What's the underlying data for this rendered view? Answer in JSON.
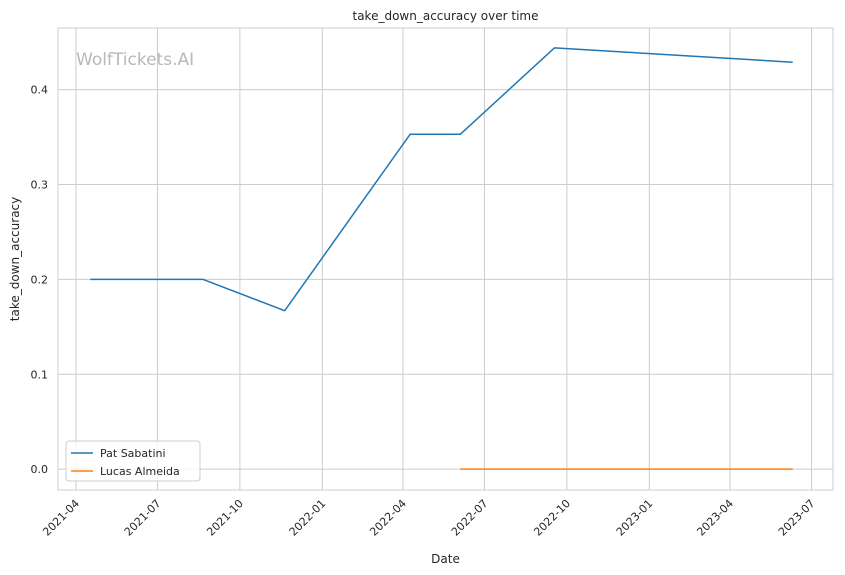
{
  "watermark": "WolfTickets.AI",
  "chart_data": {
    "type": "line",
    "title": "take_down_accuracy over time",
    "xlabel": "Date",
    "ylabel": "take_down_accuracy",
    "x_ticks": [
      "2021-04",
      "2021-07",
      "2021-10",
      "2022-01",
      "2022-04",
      "2022-07",
      "2022-10",
      "2023-01",
      "2023-04",
      "2023-07"
    ],
    "y_ticks": [
      "0.0",
      "0.1",
      "0.2",
      "0.3",
      "0.4"
    ],
    "xlim": [
      "2021-03-12",
      "2023-07-25"
    ],
    "ylim": [
      -0.022,
      0.465
    ],
    "grid": true,
    "legend_position": "lower-left",
    "series": [
      {
        "name": "Pat Sabatini",
        "color": "#1f77b4",
        "x": [
          "2021-04-17",
          "2021-08-21",
          "2021-11-20",
          "2022-04-09",
          "2022-06-04",
          "2022-09-17",
          "2023-06-10"
        ],
        "y": [
          0.2,
          0.2,
          0.167,
          0.353,
          0.353,
          0.444,
          0.429
        ]
      },
      {
        "name": "Lucas Almeida",
        "color": "#ff7f0e",
        "x": [
          "2022-06-04",
          "2023-06-10"
        ],
        "y": [
          0.0,
          0.0
        ]
      }
    ]
  }
}
